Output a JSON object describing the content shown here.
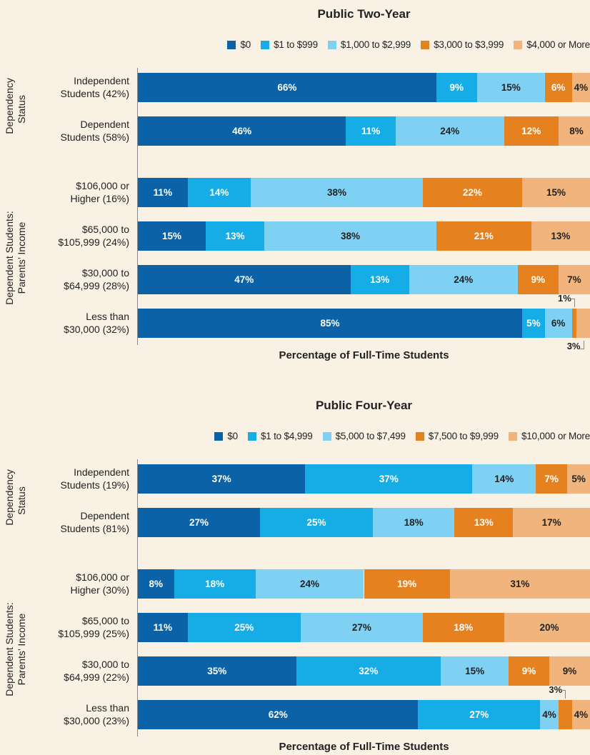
{
  "chart_data": [
    {
      "type": "bar",
      "orientation": "horizontal",
      "stacked": true,
      "title": "Public Two-Year",
      "x_label": "Percentage of Full-Time Students",
      "xlim": [
        0,
        100
      ],
      "groups": [
        {
          "label": "Dependency Status",
          "count": 2
        },
        {
          "label": "Dependent Students: Parents’ Income",
          "count": 4
        }
      ],
      "categories": [
        "Independent Students (42%)",
        "Dependent Students (58%)",
        "$106,000 or Higher (16%)",
        "$65,000 to $105,999 (24%)",
        "$30,000 to $64,999 (28%)",
        "Less than $30,000 (32%)"
      ],
      "series": [
        {
          "name": "$0",
          "color": "#0b62a6",
          "label_color": "#ffffff",
          "values": [
            66,
            46,
            11,
            15,
            47,
            85
          ],
          "value_labels": [
            "66%",
            "46%",
            "11%",
            "15%",
            "47%",
            "85%"
          ]
        },
        {
          "name": "$1 to $999",
          "color": "#16ade6",
          "label_color": "#ffffff",
          "values": [
            9,
            11,
            14,
            13,
            13,
            5
          ],
          "value_labels": [
            "9%",
            "11%",
            "14%",
            "13%",
            "13%",
            "5%"
          ]
        },
        {
          "name": "$1,000 to $2,999",
          "color": "#7fd1f3",
          "label_color": "#222222",
          "values": [
            15,
            24,
            38,
            38,
            24,
            6
          ],
          "value_labels": [
            "15%",
            "24%",
            "38%",
            "38%",
            "24%",
            "6%"
          ]
        },
        {
          "name": "$3,000 to $3,999",
          "color": "#e5821f",
          "label_color": "#ffffff",
          "values": [
            6,
            12,
            22,
            21,
            9,
            1
          ],
          "value_labels": [
            "6%",
            "12%",
            "22%",
            "21%",
            "9%",
            "1%"
          ]
        },
        {
          "name": "$4,000 or More",
          "color": "#f0b47c",
          "label_color": "#222222",
          "values": [
            4,
            8,
            15,
            13,
            7,
            3
          ],
          "value_labels": [
            "4%",
            "8%",
            "15%",
            "13%",
            "7%",
            "3%"
          ]
        }
      ]
    },
    {
      "type": "bar",
      "orientation": "horizontal",
      "stacked": true,
      "title": "Public Four-Year",
      "x_label": "Percentage of Full-Time Students",
      "xlim": [
        0,
        100
      ],
      "groups": [
        {
          "label": "Dependency Status",
          "count": 2
        },
        {
          "label": "Dependent Students: Parents’ Income",
          "count": 4
        }
      ],
      "categories": [
        "Independent Students (19%)",
        "Dependent Students (81%)",
        "$106,000 or Higher (30%)",
        "$65,000 to $105,999 (25%)",
        "$30,000 to $64,999 (22%)",
        "Less than $30,000 (23%)"
      ],
      "series": [
        {
          "name": "$0",
          "color": "#0b62a6",
          "label_color": "#ffffff",
          "values": [
            37,
            27,
            8,
            11,
            35,
            62
          ],
          "value_labels": [
            "37%",
            "27%",
            "8%",
            "11%",
            "35%",
            "62%"
          ]
        },
        {
          "name": "$1 to $4,999",
          "color": "#16ade6",
          "label_color": "#ffffff",
          "values": [
            37,
            25,
            18,
            25,
            32,
            27
          ],
          "value_labels": [
            "37%",
            "25%",
            "18%",
            "25%",
            "32%",
            "27%"
          ]
        },
        {
          "name": "$5,000 to $7,499",
          "color": "#7fd1f3",
          "label_color": "#222222",
          "values": [
            14,
            18,
            24,
            27,
            15,
            4
          ],
          "value_labels": [
            "14%",
            "18%",
            "24%",
            "27%",
            "15%",
            "4%"
          ]
        },
        {
          "name": "$7,500 to $9,999",
          "color": "#e5821f",
          "label_color": "#ffffff",
          "values": [
            7,
            13,
            19,
            18,
            9,
            3
          ],
          "value_labels": [
            "7%",
            "13%",
            "19%",
            "18%",
            "9%",
            "3%"
          ]
        },
        {
          "name": "$10,000 or More",
          "color": "#f0b47c",
          "label_color": "#222222",
          "values": [
            5,
            17,
            31,
            20,
            9,
            4
          ],
          "value_labels": [
            "5%",
            "17%",
            "31%",
            "20%",
            "9%",
            "4%"
          ]
        }
      ]
    }
  ]
}
